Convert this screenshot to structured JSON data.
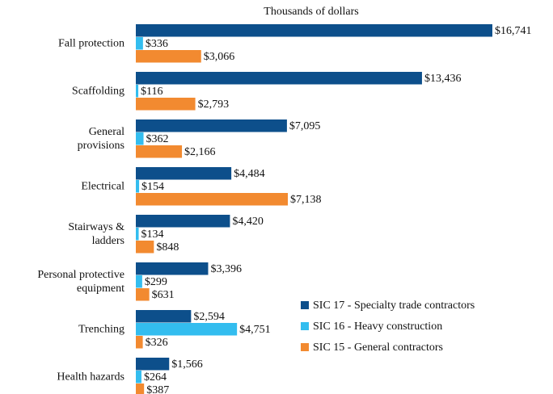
{
  "chart_data": {
    "type": "bar",
    "orientation": "horizontal",
    "title": "Thousands of dollars",
    "categories": [
      "Fall protection",
      "Scaffolding",
      "General\nprovisions",
      "Electrical",
      "Stairways &\nladders",
      "Personal protective\nequipment",
      "Trenching",
      "Health hazards"
    ],
    "series": [
      {
        "name": "SIC 17 - Specialty trade contractors",
        "color": "#0d4f8b",
        "values": [
          16741,
          13436,
          7095,
          4484,
          4420,
          3396,
          2594,
          1566
        ],
        "value_labels": [
          "$16,741",
          "$13,436",
          "$7,095",
          "$4,484",
          "$4,420",
          "$3,396",
          "$2,594",
          "$1,566"
        ]
      },
      {
        "name": "SIC 16 - Heavy construction",
        "color": "#33bdef",
        "values": [
          336,
          116,
          362,
          154,
          134,
          299,
          4751,
          264
        ],
        "value_labels": [
          "$336",
          "$116",
          "$362",
          "$154",
          "$134",
          "$299",
          "$4,751",
          "$264"
        ]
      },
      {
        "name": "SIC 15 - General contractors",
        "color": "#f28a30",
        "values": [
          3066,
          2793,
          2166,
          7138,
          848,
          631,
          326,
          387
        ],
        "value_labels": [
          "$3,066",
          "$2,793",
          "$2,166",
          "$7,138",
          "$848",
          "$631",
          "$326",
          "$387"
        ]
      }
    ]
  }
}
